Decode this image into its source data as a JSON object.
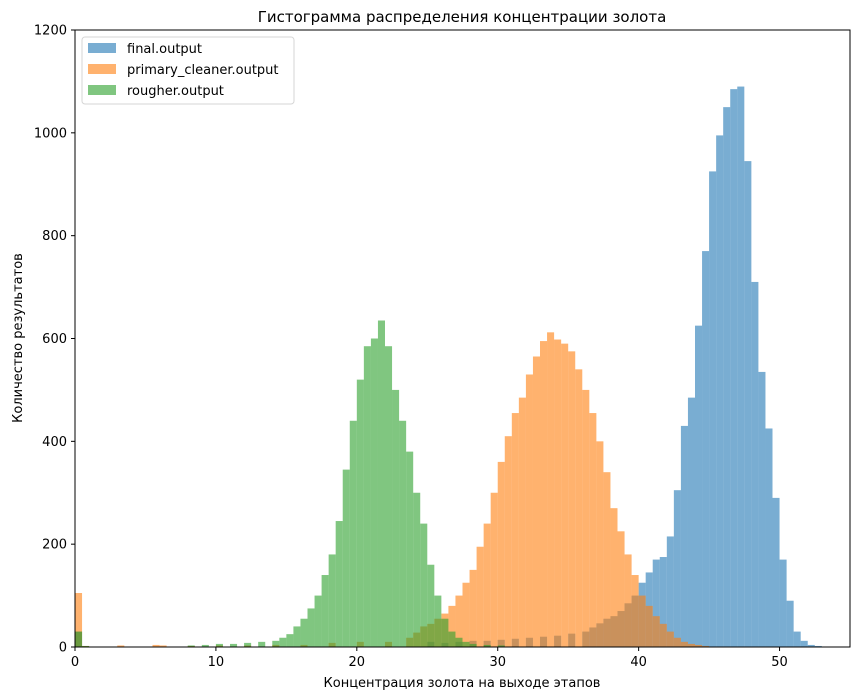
{
  "chart_data": {
    "type": "histogram",
    "title": "Гистограмма распределения концентрации золота",
    "xlabel": "Концентрация золота на выходе этапов",
    "ylabel": "Количество результатов",
    "xlim": [
      0,
      55
    ],
    "ylim": [
      0,
      1200
    ],
    "xticks": [
      0,
      10,
      20,
      30,
      40,
      50
    ],
    "yticks": [
      0,
      200,
      400,
      600,
      800,
      1000,
      1200
    ],
    "grid": false,
    "legend_position": "top-left",
    "bar_alpha": 0.6,
    "series": [
      {
        "name": "final.output",
        "color": "#1f77b4",
        "bin_width": 0.5,
        "bins": [
          [
            0.0,
            30
          ],
          [
            25.0,
            10
          ],
          [
            26.0,
            8
          ],
          [
            27.0,
            10
          ],
          [
            28.0,
            12
          ],
          [
            29.0,
            12
          ],
          [
            30.0,
            14
          ],
          [
            31.0,
            16
          ],
          [
            32.0,
            18
          ],
          [
            33.0,
            20
          ],
          [
            34.0,
            22
          ],
          [
            35.0,
            26
          ],
          [
            36.0,
            30
          ],
          [
            36.5,
            38
          ],
          [
            37.0,
            46
          ],
          [
            37.5,
            55
          ],
          [
            38.0,
            60
          ],
          [
            38.5,
            70
          ],
          [
            39.0,
            85
          ],
          [
            39.5,
            100
          ],
          [
            40.0,
            125
          ],
          [
            40.5,
            145
          ],
          [
            41.0,
            170
          ],
          [
            41.5,
            175
          ],
          [
            42.0,
            215
          ],
          [
            42.5,
            305
          ],
          [
            43.0,
            430
          ],
          [
            43.5,
            485
          ],
          [
            44.0,
            625
          ],
          [
            44.5,
            770
          ],
          [
            45.0,
            925
          ],
          [
            45.5,
            995
          ],
          [
            46.0,
            1050
          ],
          [
            46.5,
            1085
          ],
          [
            47.0,
            1090
          ],
          [
            47.5,
            945
          ],
          [
            48.0,
            710
          ],
          [
            48.5,
            535
          ],
          [
            49.0,
            425
          ],
          [
            49.5,
            290
          ],
          [
            50.0,
            170
          ],
          [
            50.5,
            90
          ],
          [
            51.0,
            30
          ],
          [
            51.5,
            12
          ],
          [
            52.0,
            4
          ],
          [
            52.5,
            2
          ]
        ]
      },
      {
        "name": "primary_cleaner.output",
        "color": "#ff7f0e",
        "bin_width": 0.5,
        "bins": [
          [
            0.0,
            105
          ],
          [
            0.5,
            2
          ],
          [
            3.0,
            3
          ],
          [
            5.5,
            4
          ],
          [
            6.0,
            3
          ],
          [
            8.0,
            2
          ],
          [
            10.0,
            3
          ],
          [
            12.0,
            3
          ],
          [
            14.0,
            4
          ],
          [
            16.0,
            4
          ],
          [
            18.0,
            8
          ],
          [
            20.0,
            10
          ],
          [
            22.0,
            10
          ],
          [
            23.5,
            18
          ],
          [
            24.0,
            28
          ],
          [
            24.5,
            40
          ],
          [
            25.0,
            45
          ],
          [
            25.5,
            55
          ],
          [
            26.0,
            65
          ],
          [
            26.5,
            80
          ],
          [
            27.0,
            100
          ],
          [
            27.5,
            125
          ],
          [
            28.0,
            150
          ],
          [
            28.5,
            195
          ],
          [
            29.0,
            240
          ],
          [
            29.5,
            300
          ],
          [
            30.0,
            360
          ],
          [
            30.5,
            410
          ],
          [
            31.0,
            455
          ],
          [
            31.5,
            485
          ],
          [
            32.0,
            530
          ],
          [
            32.5,
            565
          ],
          [
            33.0,
            595
          ],
          [
            33.5,
            612
          ],
          [
            34.0,
            598
          ],
          [
            34.5,
            590
          ],
          [
            35.0,
            575
          ],
          [
            35.5,
            540
          ],
          [
            36.0,
            500
          ],
          [
            36.5,
            455
          ],
          [
            37.0,
            400
          ],
          [
            37.5,
            340
          ],
          [
            38.0,
            270
          ],
          [
            38.5,
            225
          ],
          [
            39.0,
            180
          ],
          [
            39.5,
            140
          ],
          [
            40.0,
            100
          ],
          [
            40.5,
            80
          ],
          [
            41.0,
            60
          ],
          [
            41.5,
            45
          ],
          [
            42.0,
            30
          ],
          [
            42.5,
            18
          ],
          [
            43.0,
            10
          ],
          [
            43.5,
            6
          ],
          [
            44.0,
            4
          ],
          [
            44.5,
            2
          ]
        ]
      },
      {
        "name": "rougher.output",
        "color": "#2ca02c",
        "bin_width": 0.5,
        "bins": [
          [
            0.0,
            30
          ],
          [
            0.5,
            2
          ],
          [
            8.0,
            3
          ],
          [
            9.0,
            4
          ],
          [
            10.0,
            6
          ],
          [
            11.0,
            6
          ],
          [
            12.0,
            8
          ],
          [
            13.0,
            10
          ],
          [
            14.0,
            12
          ],
          [
            14.5,
            18
          ],
          [
            15.0,
            25
          ],
          [
            15.5,
            40
          ],
          [
            16.0,
            55
          ],
          [
            16.5,
            75
          ],
          [
            17.0,
            100
          ],
          [
            17.5,
            140
          ],
          [
            18.0,
            180
          ],
          [
            18.5,
            245
          ],
          [
            19.0,
            345
          ],
          [
            19.5,
            440
          ],
          [
            20.0,
            520
          ],
          [
            20.5,
            585
          ],
          [
            21.0,
            600
          ],
          [
            21.5,
            635
          ],
          [
            22.0,
            585
          ],
          [
            22.5,
            500
          ],
          [
            23.0,
            440
          ],
          [
            23.5,
            380
          ],
          [
            24.0,
            300
          ],
          [
            24.5,
            240
          ],
          [
            25.0,
            160
          ],
          [
            25.5,
            100
          ],
          [
            26.0,
            55
          ],
          [
            26.5,
            30
          ],
          [
            27.0,
            18
          ],
          [
            27.5,
            10
          ],
          [
            28.0,
            6
          ],
          [
            29.0,
            4
          ],
          [
            30.0,
            3
          ]
        ]
      }
    ]
  }
}
